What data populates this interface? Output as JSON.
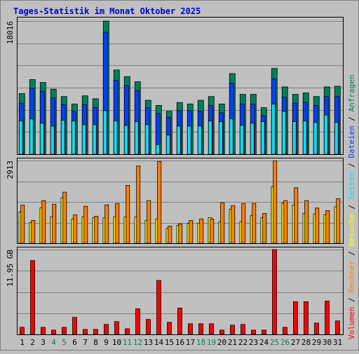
{
  "title": "Tages-Statistik im Monat Oktober 2025",
  "colors": {
    "background": "#c0c0c0",
    "title": "#0000cc",
    "anfragen": "#00805a",
    "dateien": "#0040ff",
    "seiten": "#00e0ff",
    "besuche": "#ffff00",
    "rechner": "#ff8000",
    "volumen": "#ff0000",
    "weekend_label": "#00805a",
    "weekday_label": "#000000"
  },
  "chart_data": [
    {
      "type": "bar",
      "y_tick_label": "18016",
      "ymax": 18016,
      "categories": [
        "1",
        "2",
        "3",
        "4",
        "5",
        "6",
        "7",
        "8",
        "9",
        "10",
        "11",
        "12",
        "13",
        "14",
        "15",
        "16",
        "17",
        "18",
        "19",
        "20",
        "21",
        "22",
        "23",
        "24",
        "25",
        "26",
        "27",
        "28",
        "29",
        "30",
        "31"
      ],
      "weekend_days": [
        "4",
        "5",
        "11",
        "12",
        "18",
        "19",
        "25",
        "26"
      ],
      "series": [
        {
          "name": "Anfragen",
          "values": [
            8200,
            10100,
            9700,
            8800,
            7800,
            6800,
            7900,
            7500,
            18016,
            11400,
            10500,
            9800,
            7300,
            6600,
            5800,
            7000,
            6800,
            7300,
            7800,
            6800,
            10900,
            8100,
            8100,
            6300,
            11600,
            9100,
            8100,
            8300,
            7800,
            9100,
            9200
          ]
        },
        {
          "name": "Dateien",
          "values": [
            6900,
            8900,
            8500,
            7600,
            6700,
            5800,
            6700,
            6300,
            16500,
            10000,
            9300,
            8600,
            6300,
            5500,
            5000,
            5900,
            5900,
            5800,
            6600,
            5600,
            9600,
            6800,
            6800,
            5200,
            10200,
            7700,
            6900,
            7000,
            6600,
            7800,
            7800
          ]
        },
        {
          "name": "Seiten",
          "values": [
            4500,
            4800,
            4200,
            3800,
            4600,
            4500,
            4000,
            4000,
            5900,
            4500,
            3900,
            4400,
            4000,
            1300,
            2600,
            3800,
            3800,
            3800,
            4500,
            4400,
            4800,
            3900,
            4200,
            4400,
            6800,
            5800,
            4400,
            4500,
            4300,
            5300,
            4300
          ]
        }
      ]
    },
    {
      "type": "bar",
      "y_tick_label": "2913",
      "ymax": 2913,
      "categories": [
        "1",
        "2",
        "3",
        "4",
        "5",
        "6",
        "7",
        "8",
        "9",
        "10",
        "11",
        "12",
        "13",
        "14",
        "15",
        "16",
        "17",
        "18",
        "19",
        "20",
        "21",
        "22",
        "23",
        "24",
        "25",
        "26",
        "27",
        "28",
        "29",
        "30",
        "31"
      ],
      "series": [
        {
          "name": "Besuche",
          "values": [
            1100,
            730,
            1250,
            930,
            1600,
            850,
            930,
            900,
            900,
            930,
            920,
            920,
            800,
            860,
            520,
            630,
            700,
            710,
            900,
            750,
            1200,
            760,
            970,
            900,
            1990,
            1420,
            1350,
            1050,
            1030,
            1000,
            1280
          ]
        },
        {
          "name": "Rechner",
          "values": [
            1340,
            800,
            1500,
            1370,
            1800,
            1000,
            1300,
            950,
            1350,
            1400,
            2040,
            2720,
            1500,
            2880,
            600,
            680,
            800,
            860,
            850,
            1430,
            1320,
            1400,
            1400,
            1050,
            2900,
            1500,
            1950,
            1500,
            1240,
            1150,
            1570
          ]
        }
      ]
    },
    {
      "type": "bar",
      "y_tick_label": "11.95 GB",
      "ymax": 11.95,
      "categories": [
        "1",
        "2",
        "3",
        "4",
        "5",
        "6",
        "7",
        "8",
        "9",
        "10",
        "11",
        "12",
        "13",
        "14",
        "15",
        "16",
        "17",
        "18",
        "19",
        "20",
        "21",
        "22",
        "23",
        "24",
        "25",
        "26",
        "27",
        "28",
        "29",
        "30",
        "31"
      ],
      "series": [
        {
          "name": "Volumen",
          "values": [
            1.0,
            10.4,
            1.0,
            0.6,
            1.0,
            2.4,
            0.7,
            0.7,
            1.4,
            1.8,
            0.8,
            3.6,
            2.1,
            7.6,
            1.7,
            3.7,
            1.5,
            1.5,
            1.5,
            0.6,
            1.3,
            1.4,
            0.6,
            0.6,
            11.95,
            1.0,
            4.6,
            4.6,
            1.6,
            4.7,
            1.9
          ]
        }
      ]
    }
  ],
  "legend": {
    "volumen": "Volumen",
    "rechner": "Rechner",
    "besuche": "Besuche",
    "seiten": "Seiten",
    "dateien": "Dateien",
    "anfragen": "Anfragen",
    "separator": " / "
  }
}
